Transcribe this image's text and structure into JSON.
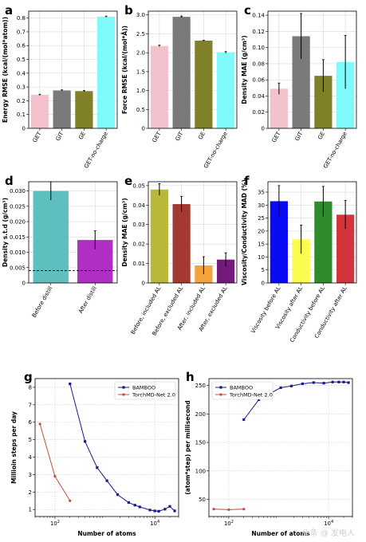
{
  "watermark": "头条 @ 发电人",
  "colors": {
    "pink": "#f4c2cc",
    "gray": "#7a7a7a",
    "olive": "#808028",
    "cyan": "#7ff9f9",
    "teal": "#5fbfbf",
    "magenta": "#b02ec4",
    "olive_light": "#b8b83a",
    "brown": "#a23a32",
    "orange": "#f3a33c",
    "purple": "#741a7a",
    "blue": "#0a0af5",
    "yellow": "#fbfb50",
    "green": "#2e8b2e",
    "red": "#d4343e",
    "navy": "#1a1a8c",
    "redline": "#c64a3a"
  },
  "chart_data": [
    {
      "panel": "a",
      "type": "bar",
      "categories": [
        "GET",
        "GIT",
        "GE",
        "GET-no-charge"
      ],
      "values": [
        0.243,
        0.275,
        0.27,
        0.81
      ],
      "errors": [
        0.004,
        0.004,
        0.004,
        0.004
      ],
      "bar_colors": [
        "pink",
        "gray",
        "olive",
        "cyan"
      ],
      "ylabel": "Energy RMSE (kcal/(mol*atom))",
      "ylim": [
        0,
        0.85
      ],
      "yticks": [
        "0",
        "0.1",
        "0.2",
        "0.3",
        "0.4",
        "0.5",
        "0.6",
        "0.7",
        "0.8"
      ],
      "ytick_values": [
        0,
        0.1,
        0.2,
        0.3,
        0.4,
        0.5,
        0.6,
        0.7,
        0.8
      ],
      "grid": true
    },
    {
      "panel": "b",
      "type": "bar",
      "categories": [
        "GET",
        "GIT",
        "GE",
        "GET-no-charge"
      ],
      "values": [
        2.18,
        2.95,
        2.32,
        2.01
      ],
      "errors": [
        0.02,
        0.02,
        0.01,
        0.02
      ],
      "bar_colors": [
        "pink",
        "gray",
        "olive",
        "cyan"
      ],
      "ylabel": "Force RMSE (kcal/(mol*Å))",
      "ylim": [
        0,
        3.1
      ],
      "yticks": [
        "0",
        "0.5",
        "1.0",
        "1.5",
        "2.0",
        "2.5",
        "3.0"
      ],
      "ytick_values": [
        0,
        0.5,
        1.0,
        1.5,
        2.0,
        2.5,
        3.0
      ],
      "grid": true
    },
    {
      "panel": "c",
      "type": "bar",
      "categories": [
        "GET",
        "GIT",
        "GE",
        "GET-no-charge"
      ],
      "values": [
        0.049,
        0.114,
        0.065,
        0.082
      ],
      "errors": [
        0.007,
        0.028,
        0.02,
        0.033
      ],
      "bar_colors": [
        "pink",
        "gray",
        "olive",
        "cyan"
      ],
      "ylabel": "Density MAE (g/cm³)",
      "ylim": [
        0,
        0.145
      ],
      "yticks": [
        "0",
        "0.02",
        "0.04",
        "0.06",
        "0.08",
        "0.10",
        "0.12",
        "0.14"
      ],
      "ytick_values": [
        0,
        0.02,
        0.04,
        0.06,
        0.08,
        0.1,
        0.12,
        0.14
      ],
      "grid": true
    },
    {
      "panel": "d",
      "type": "bar",
      "categories": [
        "Before distill",
        "After distill"
      ],
      "values": [
        0.03,
        0.014
      ],
      "errors": [
        0.003,
        0.003
      ],
      "bar_colors": [
        "teal",
        "magenta"
      ],
      "ylabel": "Density s.t.d (g/cm³)",
      "ylim": [
        0,
        0.033
      ],
      "yticks": [
        "0",
        "0.005",
        "0.010",
        "0.015",
        "0.020",
        "0.025",
        "0.030"
      ],
      "ytick_values": [
        0,
        0.005,
        0.01,
        0.015,
        0.02,
        0.025,
        0.03
      ],
      "hline": 0.004,
      "grid": true
    },
    {
      "panel": "e",
      "type": "bar",
      "categories": [
        "Before, included AL",
        "Before, excluded AL",
        "After, included AL",
        "After, excluded AL"
      ],
      "values": [
        0.048,
        0.0405,
        0.009,
        0.012
      ],
      "errors": [
        0.003,
        0.004,
        0.0045,
        0.0035
      ],
      "bar_colors": [
        "olive_light",
        "brown",
        "orange",
        "purple"
      ],
      "ylabel": "Density MAE (g/cm³)",
      "ylim": [
        0,
        0.052
      ],
      "yticks": [
        "0",
        "0.01",
        "0.02",
        "0.03",
        "0.04",
        "0.05"
      ],
      "ytick_values": [
        0,
        0.01,
        0.02,
        0.03,
        0.04,
        0.05
      ],
      "grid": true
    },
    {
      "panel": "f",
      "type": "bar",
      "categories": [
        "Viscosity before AL",
        "Viscosity after AL",
        "Conductivity before AL",
        "Conductivity after AL"
      ],
      "values": [
        31.5,
        16.8,
        31.4,
        26.3
      ],
      "errors": [
        6.0,
        5.5,
        5.8,
        5.5
      ],
      "bar_colors": [
        "blue",
        "yellow",
        "green",
        "red"
      ],
      "ylabel": "Viscosity/Conductivity MAD (%)",
      "ylim": [
        0,
        39
      ],
      "yticks": [
        "0",
        "5",
        "10",
        "15",
        "20",
        "25",
        "30",
        "35"
      ],
      "ytick_values": [
        0,
        5,
        10,
        15,
        20,
        25,
        30,
        35
      ],
      "grid": true
    },
    {
      "panel": "g",
      "type": "line",
      "xscale": "log",
      "xlabel": "Number of atoms",
      "ylabel": "Millioin steps per day",
      "xlim": [
        40,
        30000
      ],
      "ylim": [
        0.6,
        8.5
      ],
      "xticks": [
        {
          "value": 100,
          "base": "10",
          "exp": "2"
        },
        {
          "value": 10000,
          "base": "10",
          "exp": "4"
        }
      ],
      "yticks": [
        "1",
        "2",
        "3",
        "4",
        "5",
        "6",
        "7",
        "8"
      ],
      "ytick_values": [
        1,
        2,
        3,
        4,
        5,
        6,
        7,
        8
      ],
      "legend_position": "top-right",
      "series": [
        {
          "name": "BAMBOO",
          "color": "navy",
          "marker": "square",
          "x": [
            200,
            400,
            700,
            1100,
            1800,
            3000,
            4000,
            5000,
            8000,
            10000,
            12000,
            16000,
            20000,
            25000
          ],
          "y": [
            8.2,
            4.9,
            3.4,
            2.65,
            1.85,
            1.4,
            1.25,
            1.15,
            0.97,
            0.92,
            0.9,
            1.02,
            1.18,
            0.92
          ]
        },
        {
          "name": "TorchMD-Net 2.0",
          "color": "redline",
          "marker": "circle",
          "x": [
            50,
            100,
            200
          ],
          "y": [
            5.9,
            2.9,
            1.5
          ]
        }
      ],
      "grid": true
    },
    {
      "panel": "h",
      "type": "line",
      "xscale": "log",
      "xlabel": "Number of atoms",
      "ylabel": "(atom*step) per millisecond",
      "xlim": [
        40,
        30000
      ],
      "ylim": [
        20,
        262
      ],
      "xticks": [
        {
          "value": 100,
          "base": "10",
          "exp": "2"
        },
        {
          "value": 10000,
          "base": "10",
          "exp": "4"
        }
      ],
      "yticks": [
        "50",
        "100",
        "150",
        "200",
        "250"
      ],
      "ytick_values": [
        50,
        100,
        150,
        200,
        250
      ],
      "legend_position": "top-left",
      "series": [
        {
          "name": "BAMBOO",
          "color": "navy",
          "marker": "square",
          "x": [
            200,
            400,
            700,
            1100,
            1800,
            3000,
            5000,
            8000,
            12000,
            16000,
            20000,
            25000
          ],
          "y": [
            190,
            225,
            237,
            246,
            249,
            253,
            255,
            254,
            256,
            256,
            256,
            255
          ]
        },
        {
          "name": "TorchMD-Net 2.0",
          "color": "redline",
          "marker": "circle",
          "x": [
            50,
            100,
            200
          ],
          "y": [
            33,
            32,
            33
          ]
        }
      ],
      "grid": true
    }
  ]
}
